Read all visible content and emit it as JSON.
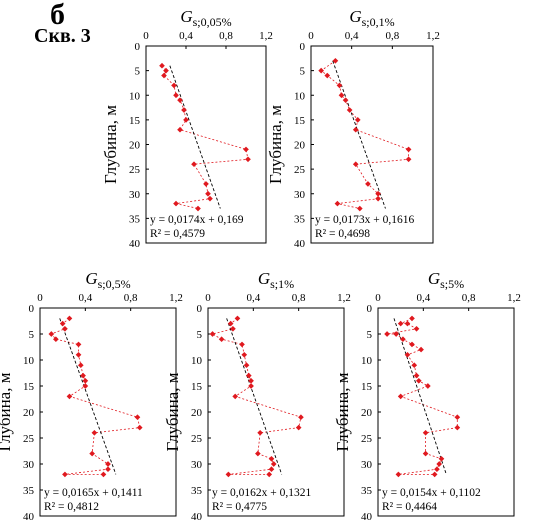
{
  "header": {
    "panel_letter": "б",
    "well": "Скв. 3"
  },
  "chart_data": [
    {
      "type": "scatter",
      "title_symbol": "G",
      "title_sub": "s;0,05%",
      "ylabel": "Глубина, м",
      "xlim": [
        0,
        1.2
      ],
      "ylim": [
        0,
        40
      ],
      "xticks": [
        "0",
        "0,4",
        "0,8",
        "1,2"
      ],
      "yticks": [
        "0",
        "5",
        "10",
        "15",
        "20",
        "25",
        "30",
        "35",
        "40"
      ],
      "points": [
        {
          "x": 0.16,
          "y": 4
        },
        {
          "x": 0.2,
          "y": 5
        },
        {
          "x": 0.18,
          "y": 6
        },
        {
          "x": 0.28,
          "y": 8
        },
        {
          "x": 0.3,
          "y": 10
        },
        {
          "x": 0.34,
          "y": 11
        },
        {
          "x": 0.38,
          "y": 13
        },
        {
          "x": 0.4,
          "y": 15
        },
        {
          "x": 0.34,
          "y": 17
        },
        {
          "x": 1.0,
          "y": 21
        },
        {
          "x": 1.02,
          "y": 23
        },
        {
          "x": 0.48,
          "y": 24
        },
        {
          "x": 0.6,
          "y": 28
        },
        {
          "x": 0.62,
          "y": 30
        },
        {
          "x": 0.64,
          "y": 31
        },
        {
          "x": 0.3,
          "y": 32
        },
        {
          "x": 0.52,
          "y": 33
        }
      ],
      "trend": {
        "slope": 0.0174,
        "intercept": 0.169
      },
      "equation": "y = 0,0174x + 0,169",
      "r2": "R² = 0,4579"
    },
    {
      "type": "scatter",
      "title_symbol": "G",
      "title_sub": "s;0,1%",
      "ylabel": "Глубина, м",
      "xlim": [
        0,
        1.2
      ],
      "ylim": [
        0,
        40
      ],
      "xticks": [
        "0",
        "0,4",
        "0,8",
        "1,2"
      ],
      "yticks": [
        "0",
        "5",
        "10",
        "15",
        "20",
        "25",
        "30",
        "35",
        "40"
      ],
      "points": [
        {
          "x": 0.24,
          "y": 3
        },
        {
          "x": 0.1,
          "y": 5
        },
        {
          "x": 0.16,
          "y": 6
        },
        {
          "x": 0.28,
          "y": 8
        },
        {
          "x": 0.3,
          "y": 10
        },
        {
          "x": 0.34,
          "y": 11
        },
        {
          "x": 0.38,
          "y": 13
        },
        {
          "x": 0.46,
          "y": 15
        },
        {
          "x": 0.44,
          "y": 17
        },
        {
          "x": 0.96,
          "y": 21
        },
        {
          "x": 0.96,
          "y": 23
        },
        {
          "x": 0.44,
          "y": 24
        },
        {
          "x": 0.56,
          "y": 28
        },
        {
          "x": 0.66,
          "y": 30
        },
        {
          "x": 0.66,
          "y": 31
        },
        {
          "x": 0.26,
          "y": 32
        },
        {
          "x": 0.48,
          "y": 33
        }
      ],
      "trend": {
        "slope": 0.0173,
        "intercept": 0.1616
      },
      "equation": "y = 0,0173x + 0,1616",
      "r2": "R² = 0,4698"
    },
    {
      "type": "scatter",
      "title_symbol": "G",
      "title_sub": "s;0,5%",
      "ylabel": "Глубина, м",
      "xlim": [
        0,
        1.2
      ],
      "ylim": [
        0,
        40
      ],
      "xticks": [
        "0",
        "0,4",
        "0,8",
        "1,2"
      ],
      "yticks": [
        "0",
        "5",
        "10",
        "15",
        "20",
        "25",
        "30",
        "35",
        "40"
      ],
      "points": [
        {
          "x": 0.26,
          "y": 2
        },
        {
          "x": 0.2,
          "y": 3
        },
        {
          "x": 0.22,
          "y": 4
        },
        {
          "x": 0.1,
          "y": 5
        },
        {
          "x": 0.14,
          "y": 6
        },
        {
          "x": 0.34,
          "y": 7
        },
        {
          "x": 0.34,
          "y": 9
        },
        {
          "x": 0.36,
          "y": 11
        },
        {
          "x": 0.38,
          "y": 13
        },
        {
          "x": 0.4,
          "y": 14
        },
        {
          "x": 0.4,
          "y": 15
        },
        {
          "x": 0.26,
          "y": 17
        },
        {
          "x": 0.86,
          "y": 21
        },
        {
          "x": 0.88,
          "y": 23
        },
        {
          "x": 0.48,
          "y": 24
        },
        {
          "x": 0.46,
          "y": 28
        },
        {
          "x": 0.6,
          "y": 30
        },
        {
          "x": 0.6,
          "y": 31
        },
        {
          "x": 0.22,
          "y": 32
        },
        {
          "x": 0.56,
          "y": 32
        }
      ],
      "trend": {
        "slope": 0.0165,
        "intercept": 0.1411
      },
      "equation": "y = 0,0165x + 0,1411",
      "r2": "R² = 0,4812"
    },
    {
      "type": "scatter",
      "title_symbol": "G",
      "title_sub": "s;1%",
      "ylabel": "Глубина, м",
      "xlim": [
        0,
        1.2
      ],
      "ylim": [
        0,
        40
      ],
      "xticks": [
        "0",
        "0,4",
        "0,8",
        "1,2"
      ],
      "yticks": [
        "0",
        "5",
        "10",
        "15",
        "20",
        "25",
        "30",
        "35",
        "40"
      ],
      "points": [
        {
          "x": 0.26,
          "y": 2
        },
        {
          "x": 0.2,
          "y": 3
        },
        {
          "x": 0.22,
          "y": 4
        },
        {
          "x": 0.04,
          "y": 5
        },
        {
          "x": 0.12,
          "y": 6
        },
        {
          "x": 0.3,
          "y": 7
        },
        {
          "x": 0.32,
          "y": 9
        },
        {
          "x": 0.34,
          "y": 11
        },
        {
          "x": 0.36,
          "y": 13
        },
        {
          "x": 0.38,
          "y": 14
        },
        {
          "x": 0.38,
          "y": 15
        },
        {
          "x": 0.24,
          "y": 17
        },
        {
          "x": 0.82,
          "y": 21
        },
        {
          "x": 0.8,
          "y": 23
        },
        {
          "x": 0.46,
          "y": 24
        },
        {
          "x": 0.44,
          "y": 28
        },
        {
          "x": 0.56,
          "y": 29
        },
        {
          "x": 0.58,
          "y": 30
        },
        {
          "x": 0.56,
          "y": 31
        },
        {
          "x": 0.18,
          "y": 32
        },
        {
          "x": 0.54,
          "y": 32
        }
      ],
      "trend": {
        "slope": 0.0162,
        "intercept": 0.1321
      },
      "equation": "y = 0,0162x + 0,1321",
      "r2": "R² = 0,4775"
    },
    {
      "type": "scatter",
      "title_symbol": "G",
      "title_sub": "s;5%",
      "ylabel": "Глубина, м",
      "xlim": [
        0,
        1.2
      ],
      "ylim": [
        0,
        40
      ],
      "xticks": [
        "0",
        "0,4",
        "0,8",
        "1,2"
      ],
      "yticks": [
        "0",
        "5",
        "10",
        "15",
        "20",
        "25",
        "30",
        "35",
        "40"
      ],
      "points": [
        {
          "x": 0.3,
          "y": 2
        },
        {
          "x": 0.2,
          "y": 3
        },
        {
          "x": 0.26,
          "y": 3
        },
        {
          "x": 0.34,
          "y": 4
        },
        {
          "x": 0.08,
          "y": 5
        },
        {
          "x": 0.16,
          "y": 5
        },
        {
          "x": 0.22,
          "y": 6
        },
        {
          "x": 0.3,
          "y": 7
        },
        {
          "x": 0.38,
          "y": 8
        },
        {
          "x": 0.26,
          "y": 9
        },
        {
          "x": 0.32,
          "y": 11
        },
        {
          "x": 0.34,
          "y": 13
        },
        {
          "x": 0.36,
          "y": 14
        },
        {
          "x": 0.44,
          "y": 15
        },
        {
          "x": 0.2,
          "y": 17
        },
        {
          "x": 0.7,
          "y": 21
        },
        {
          "x": 0.7,
          "y": 23
        },
        {
          "x": 0.42,
          "y": 24
        },
        {
          "x": 0.42,
          "y": 28
        },
        {
          "x": 0.56,
          "y": 29
        },
        {
          "x": 0.54,
          "y": 30
        },
        {
          "x": 0.52,
          "y": 31
        },
        {
          "x": 0.18,
          "y": 32
        },
        {
          "x": 0.5,
          "y": 32
        }
      ],
      "trend": {
        "slope": 0.0154,
        "intercept": 0.1102
      },
      "equation": "y = 0,0154x + 0,1102",
      "r2": "R² = 0,4464"
    }
  ],
  "colors": {
    "points": "#e0191f",
    "connector": "#e0191f",
    "trend": "#000000",
    "axis": "#000000"
  }
}
